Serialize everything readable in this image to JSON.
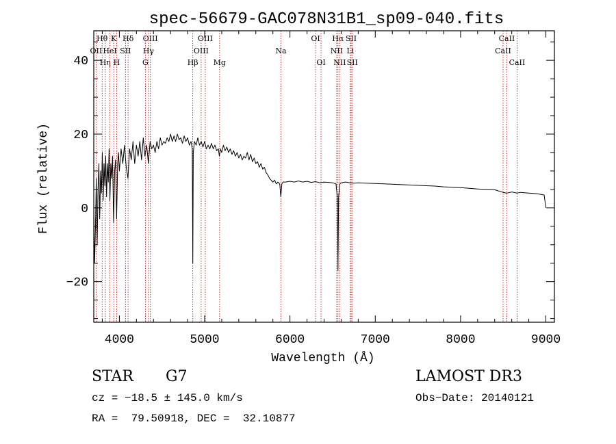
{
  "chart_data": {
    "type": "line",
    "title": "spec-56679-GAC078N31B1_sp09-040.fits",
    "xlabel": "Wavelength (Å)",
    "ylabel": "Flux (relative)",
    "xlim": [
      3700,
      9100
    ],
    "ylim": [
      -31,
      48
    ],
    "x_ticks": [
      4000,
      5000,
      6000,
      7000,
      8000,
      9000
    ],
    "y_ticks": [
      -20,
      0,
      20,
      40
    ],
    "series": [
      {
        "name": "flux",
        "points": [
          [
            3700,
            0
          ],
          [
            3710,
            -15
          ],
          [
            3720,
            -5
          ],
          [
            3730,
            8
          ],
          [
            3740,
            -10
          ],
          [
            3750,
            5
          ],
          [
            3760,
            12
          ],
          [
            3770,
            -3
          ],
          [
            3780,
            10
          ],
          [
            3790,
            4
          ],
          [
            3800,
            15
          ],
          [
            3810,
            2
          ],
          [
            3820,
            12
          ],
          [
            3830,
            6
          ],
          [
            3840,
            14
          ],
          [
            3850,
            3
          ],
          [
            3860,
            12
          ],
          [
            3870,
            7
          ],
          [
            3880,
            16
          ],
          [
            3889,
            2
          ],
          [
            3900,
            12
          ],
          [
            3910,
            8
          ],
          [
            3920,
            14
          ],
          [
            3933,
            -4
          ],
          [
            3945,
            10
          ],
          [
            3955,
            13
          ],
          [
            3968,
            -3
          ],
          [
            3980,
            12
          ],
          [
            3990,
            15
          ],
          [
            4000,
            10
          ],
          [
            4020,
            16
          ],
          [
            4040,
            12
          ],
          [
            4060,
            17
          ],
          [
            4080,
            11
          ],
          [
            4101,
            8
          ],
          [
            4120,
            16
          ],
          [
            4140,
            13
          ],
          [
            4160,
            18
          ],
          [
            4180,
            12
          ],
          [
            4200,
            17
          ],
          [
            4220,
            14
          ],
          [
            4240,
            18
          ],
          [
            4260,
            13
          ],
          [
            4280,
            19
          ],
          [
            4300,
            14
          ],
          [
            4320,
            17
          ],
          [
            4340,
            12
          ],
          [
            4360,
            18
          ],
          [
            4380,
            16
          ],
          [
            4400,
            17
          ],
          [
            4420,
            15
          ],
          [
            4440,
            18
          ],
          [
            4460,
            16
          ],
          [
            4480,
            19
          ],
          [
            4500,
            17
          ],
          [
            4520,
            18
          ],
          [
            4540,
            17.5
          ],
          [
            4560,
            19
          ],
          [
            4580,
            18
          ],
          [
            4600,
            20
          ],
          [
            4620,
            18
          ],
          [
            4640,
            19.5
          ],
          [
            4660,
            18
          ],
          [
            4680,
            20
          ],
          [
            4700,
            18.5
          ],
          [
            4720,
            19
          ],
          [
            4740,
            17.5
          ],
          [
            4760,
            19.5
          ],
          [
            4780,
            18
          ],
          [
            4800,
            19
          ],
          [
            4820,
            17
          ],
          [
            4840,
            18
          ],
          [
            4855,
            16
          ],
          [
            4861,
            -15
          ],
          [
            4867,
            15
          ],
          [
            4880,
            18
          ],
          [
            4900,
            17
          ],
          [
            4920,
            19
          ],
          [
            4940,
            17
          ],
          [
            4960,
            18
          ],
          [
            4980,
            16.5
          ],
          [
            5000,
            18
          ],
          [
            5020,
            16
          ],
          [
            5040,
            17
          ],
          [
            5060,
            16
          ],
          [
            5080,
            17.5
          ],
          [
            5100,
            16
          ],
          [
            5120,
            17
          ],
          [
            5140,
            15.5
          ],
          [
            5160,
            16
          ],
          [
            5172,
            14
          ],
          [
            5185,
            16
          ],
          [
            5200,
            15
          ],
          [
            5220,
            17
          ],
          [
            5240,
            15.5
          ],
          [
            5260,
            16.5
          ],
          [
            5280,
            15
          ],
          [
            5300,
            16
          ],
          [
            5320,
            14.5
          ],
          [
            5340,
            15.5
          ],
          [
            5360,
            14
          ],
          [
            5380,
            15
          ],
          [
            5400,
            13.5
          ],
          [
            5420,
            14.5
          ],
          [
            5440,
            13
          ],
          [
            5460,
            14
          ],
          [
            5480,
            13.5
          ],
          [
            5500,
            15
          ],
          [
            5520,
            13
          ],
          [
            5540,
            14.5
          ],
          [
            5560,
            12.5
          ],
          [
            5580,
            13.5
          ],
          [
            5600,
            12
          ],
          [
            5620,
            12.5
          ],
          [
            5640,
            11
          ],
          [
            5660,
            12
          ],
          [
            5680,
            10.5
          ],
          [
            5700,
            11
          ],
          [
            5720,
            9.5
          ],
          [
            5740,
            9
          ],
          [
            5760,
            8
          ],
          [
            5780,
            7.5
          ],
          [
            5800,
            7
          ],
          [
            5820,
            7.5
          ],
          [
            5840,
            6.5
          ],
          [
            5860,
            7
          ],
          [
            5880,
            6.5
          ],
          [
            5893,
            3
          ],
          [
            5905,
            6.5
          ],
          [
            5920,
            7
          ],
          [
            5950,
            7
          ],
          [
            6000,
            7.2
          ],
          [
            6050,
            7
          ],
          [
            6100,
            7.3
          ],
          [
            6150,
            7
          ],
          [
            6200,
            7.2
          ],
          [
            6250,
            6.9
          ],
          [
            6300,
            7.1
          ],
          [
            6350,
            6.8
          ],
          [
            6400,
            7
          ],
          [
            6450,
            6.9
          ],
          [
            6500,
            6.8
          ],
          [
            6540,
            6.5
          ],
          [
            6555,
            3
          ],
          [
            6563,
            -17
          ],
          [
            6570,
            3
          ],
          [
            6585,
            6.5
          ],
          [
            6600,
            6.8
          ],
          [
            6650,
            7
          ],
          [
            6700,
            6.8
          ],
          [
            6750,
            6.7
          ],
          [
            6800,
            6.8
          ],
          [
            6900,
            6.7
          ],
          [
            7000,
            6.6
          ],
          [
            7100,
            6.5
          ],
          [
            7200,
            6.4
          ],
          [
            7300,
            6.3
          ],
          [
            7400,
            6.2
          ],
          [
            7500,
            6.1
          ],
          [
            7600,
            6
          ],
          [
            7700,
            5.9
          ],
          [
            7800,
            5.7
          ],
          [
            7900,
            5.6
          ],
          [
            8000,
            5.5
          ],
          [
            8100,
            5.3
          ],
          [
            8200,
            5.1
          ],
          [
            8300,
            5
          ],
          [
            8400,
            4.9
          ],
          [
            8498,
            4.2
          ],
          [
            8542,
            4
          ],
          [
            8600,
            4.3
          ],
          [
            8662,
            4
          ],
          [
            8700,
            4.2
          ],
          [
            8800,
            4
          ],
          [
            8900,
            3.8
          ],
          [
            8950,
            3.6
          ],
          [
            8980,
            3.5
          ],
          [
            9000,
            0
          ]
        ]
      }
    ],
    "lines": [
      {
        "name": "Hθ",
        "wave": 3798,
        "row": 1
      },
      {
        "name": "OII",
        "wave": 3727,
        "row": 2
      },
      {
        "name": "Hη",
        "wave": 3835,
        "row": 3
      },
      {
        "name": "K",
        "wave": 3934,
        "row": 1
      },
      {
        "name": "HeI",
        "wave": 3889,
        "row": 2
      },
      {
        "name": "H",
        "wave": 3968,
        "row": 3
      },
      {
        "name": "Hδ",
        "wave": 4102,
        "row": 1
      },
      {
        "name": "SII",
        "wave": 4072,
        "row": 2
      },
      {
        "name": "OIII",
        "wave": 4363,
        "row": 1
      },
      {
        "name": "Hγ",
        "wave": 4341,
        "row": 2
      },
      {
        "name": "G",
        "wave": 4305,
        "row": 3
      },
      {
        "name": "Hβ",
        "wave": 4861,
        "row": 3
      },
      {
        "name": "OIII",
        "wave": 5007,
        "row": 1
      },
      {
        "name": "OIII",
        "wave": 4959,
        "row": 2
      },
      {
        "name": "Mg",
        "wave": 5175,
        "row": 3
      },
      {
        "name": "Na",
        "wave": 5894,
        "row": 2
      },
      {
        "name": "OI",
        "wave": 6300,
        "row": 1
      },
      {
        "name": "OI",
        "wave": 6364,
        "row": 3
      },
      {
        "name": "Hα",
        "wave": 6563,
        "row": 1
      },
      {
        "name": "NII",
        "wave": 6548,
        "row": 2
      },
      {
        "name": "NII",
        "wave": 6583,
        "row": 3
      },
      {
        "name": "SII",
        "wave": 6717,
        "row": 1
      },
      {
        "name": "Li",
        "wave": 6708,
        "row": 2
      },
      {
        "name": "SII",
        "wave": 6731,
        "row": 3
      },
      {
        "name": "CaII",
        "wave": 8542,
        "row": 1
      },
      {
        "name": "CaII",
        "wave": 8498,
        "row": 2
      },
      {
        "name": "CaII",
        "wave": 8662,
        "row": 3
      }
    ]
  },
  "info": {
    "class": "STAR",
    "subclass": "G7",
    "survey": "LAMOST DR3",
    "cz": "cz = −18.5 ± 145.0 km/s",
    "obs_date": "Obs−Date: 20140121",
    "radec": "RA =  79.50918, DEC =  32.10877"
  }
}
